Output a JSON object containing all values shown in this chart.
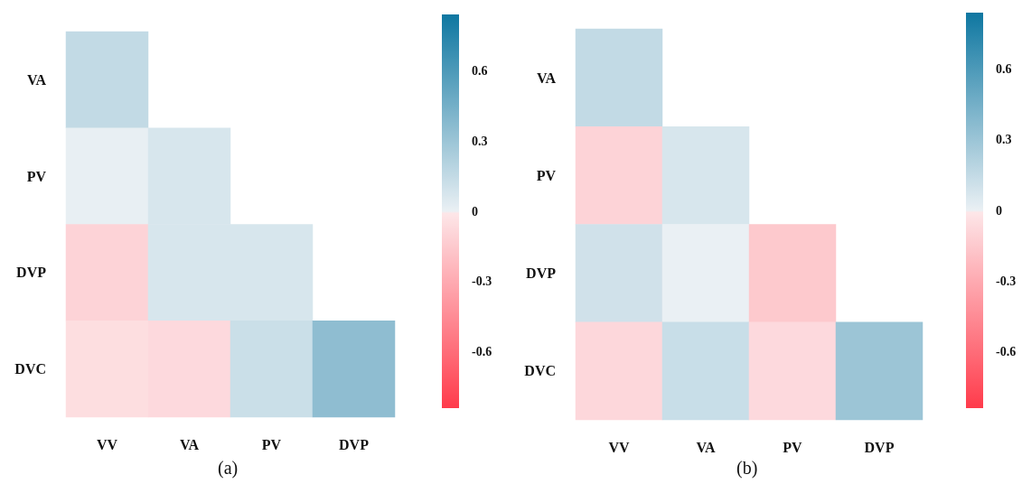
{
  "chart_data": [
    {
      "type": "heatmap",
      "title": "(a)",
      "categories": [
        "VV",
        "VA",
        "PV",
        "DVP"
      ],
      "y_categories": [
        "VA",
        "PV",
        "DVP",
        "DVC"
      ],
      "cells": [
        [
          0.15,
          null,
          null,
          null
        ],
        [
          0.01,
          0.07,
          null,
          null
        ],
        [
          -0.1,
          0.07,
          0.07,
          null
        ],
        [
          -0.05,
          -0.07,
          0.12,
          0.35
        ]
      ],
      "clim": [
        -0.84,
        0.84
      ],
      "cticks": [
        -0.6,
        -0.3,
        0,
        0.3,
        0.6
      ]
    },
    {
      "type": "heatmap",
      "title": "(b)",
      "categories": [
        "VV",
        "VA",
        "PV",
        "DVP"
      ],
      "y_categories": [
        "VA",
        "PV",
        "DVP",
        "DVC"
      ],
      "cells": [
        [
          0.15,
          null,
          null,
          null
        ],
        [
          -0.1,
          0.07,
          null,
          null
        ],
        [
          0.1,
          0.0,
          -0.15,
          null
        ],
        [
          -0.08,
          0.13,
          -0.07,
          0.3
        ]
      ],
      "clim": [
        -0.84,
        0.84
      ],
      "cticks": [
        -0.6,
        -0.3,
        0,
        0.3,
        0.6
      ]
    }
  ]
}
